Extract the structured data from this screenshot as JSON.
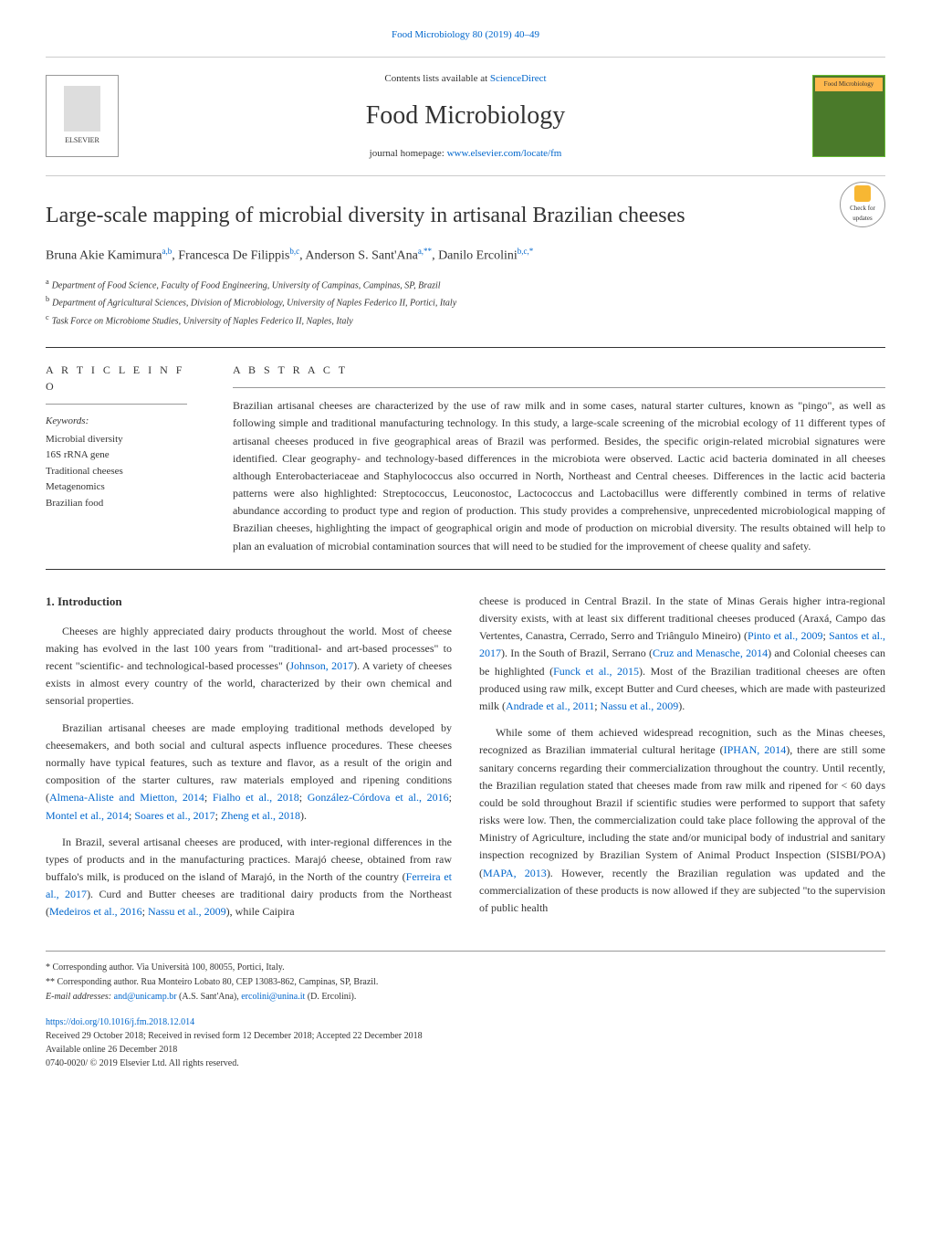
{
  "header": {
    "citation": "Food Microbiology 80 (2019) 40–49",
    "contents_text": "Contents lists available at",
    "sciencedirect": "ScienceDirect",
    "journal_name": "Food Microbiology",
    "homepage_label": "journal homepage:",
    "homepage_url": "www.elsevier.com/locate/fm",
    "publisher": "ELSEVIER",
    "cover_label": "Food Microbiology"
  },
  "article": {
    "title": "Large-scale mapping of microbial diversity in artisanal Brazilian cheeses",
    "check_updates": "Check for updates",
    "authors_html": "Bruna Akie Kamimura<sup>a,b</sup>, Francesca De Filippis<sup>b,c</sup>, Anderson S. Sant'Ana<sup>a,**</sup>, Danilo Ercolini<sup>b,c,*</sup>",
    "affiliations": {
      "a": "Department of Food Science, Faculty of Food Engineering, University of Campinas, Campinas, SP, Brazil",
      "b": "Department of Agricultural Sciences, Division of Microbiology, University of Naples Federico II, Portici, Italy",
      "c": "Task Force on Microbiome Studies, University of Naples Federico II, Naples, Italy"
    }
  },
  "info": {
    "section_label": "A R T I C L E  I N F O",
    "keywords_label": "Keywords:",
    "keywords": "Microbial diversity\n16S rRNA gene\nTraditional cheeses\nMetagenomics\nBrazilian food"
  },
  "abstract": {
    "section_label": "A B S T R A C T",
    "text": "Brazilian artisanal cheeses are characterized by the use of raw milk and in some cases, natural starter cultures, known as \"pingo\", as well as following simple and traditional manufacturing technology. In this study, a large-scale screening of the microbial ecology of 11 different types of artisanal cheeses produced in five geographical areas of Brazil was performed. Besides, the specific origin-related microbial signatures were identified. Clear geography- and technology-based differences in the microbiota were observed. Lactic acid bacteria dominated in all cheeses although Enterobacteriaceae and Staphylococcus also occurred in North, Northeast and Central cheeses. Differences in the lactic acid bacteria patterns were also highlighted: Streptococcus, Leuconostoc, Lactococcus and Lactobacillus were differently combined in terms of relative abundance according to product type and region of production. This study provides a comprehensive, unprecedented microbiological mapping of Brazilian cheeses, highlighting the impact of geographical origin and mode of production on microbial diversity. The results obtained will help to plan an evaluation of microbial contamination sources that will need to be studied for the improvement of cheese quality and safety."
  },
  "body": {
    "section_heading": "1. Introduction",
    "p1": "Cheeses are highly appreciated dairy products throughout the world. Most of cheese making has evolved in the last 100 years from \"traditional- and art-based processes\" to recent \"scientific- and technological-based processes\" (Johnson, 2017). A variety of cheeses exists in almost every country of the world, characterized by their own chemical and sensorial properties.",
    "p2": "Brazilian artisanal cheeses are made employing traditional methods developed by cheesemakers, and both social and cultural aspects influence procedures. These cheeses normally have typical features, such as texture and flavor, as a result of the origin and composition of the starter cultures, raw materials employed and ripening conditions (Almena-Aliste and Mietton, 2014; Fialho et al., 2018; González-Córdova et al., 2016; Montel et al., 2014; Soares et al., 2017; Zheng et al., 2018).",
    "p3": "In Brazil, several artisanal cheeses are produced, with inter-regional differences in the types of products and in the manufacturing practices. Marajó cheese, obtained from raw buffalo's milk, is produced on the island of Marajó, in the North of the country (Ferreira et al., 2017). Curd and Butter cheeses are traditional dairy products from the Northeast (Medeiros et al., 2016; Nassu et al., 2009), while Caipira",
    "p4": "cheese is produced in Central Brazil. In the state of Minas Gerais higher intra-regional diversity exists, with at least six different traditional cheeses produced (Araxá, Campo das Vertentes, Canastra, Cerrado, Serro and Triângulo Mineiro) (Pinto et al., 2009; Santos et al., 2017). In the South of Brazil, Serrano (Cruz and Menasche, 2014) and Colonial cheeses can be highlighted (Funck et al., 2015). Most of the Brazilian traditional cheeses are often produced using raw milk, except Butter and Curd cheeses, which are made with pasteurized milk (Andrade et al., 2011; Nassu et al., 2009).",
    "p5": "While some of them achieved widespread recognition, such as the Minas cheeses, recognized as Brazilian immaterial cultural heritage (IPHAN, 2014), there are still some sanitary concerns regarding their commercialization throughout the country. Until recently, the Brazilian regulation stated that cheeses made from raw milk and ripened for < 60 days could be sold throughout Brazil if scientific studies were performed to support that safety risks were low. Then, the commercialization could take place following the approval of the Ministry of Agriculture, including the state and/or municipal body of industrial and sanitary inspection recognized by Brazilian System of Animal Product Inspection (SISBI/POA) (MAPA, 2013). However, recently the Brazilian regulation was updated and the commercialization of these products is now allowed if they are subjected \"to the supervision of public health"
  },
  "footer": {
    "corr1": "* Corresponding author. Via Università 100, 80055, Portici, Italy.",
    "corr2": "** Corresponding author. Rua Monteiro Lobato 80, CEP 13083-862, Campinas, SP, Brazil.",
    "emails_label": "E-mail addresses:",
    "email1": "and@unicamp.br",
    "email1_name": "(A.S. Sant'Ana),",
    "email2": "ercolini@unina.it",
    "email2_name": "(D. Ercolini).",
    "doi": "https://doi.org/10.1016/j.fm.2018.12.014",
    "received": "Received 29 October 2018; Received in revised form 12 December 2018; Accepted 22 December 2018",
    "available": "Available online 26 December 2018",
    "copyright": "0740-0020/ © 2019 Elsevier Ltd. All rights reserved."
  }
}
